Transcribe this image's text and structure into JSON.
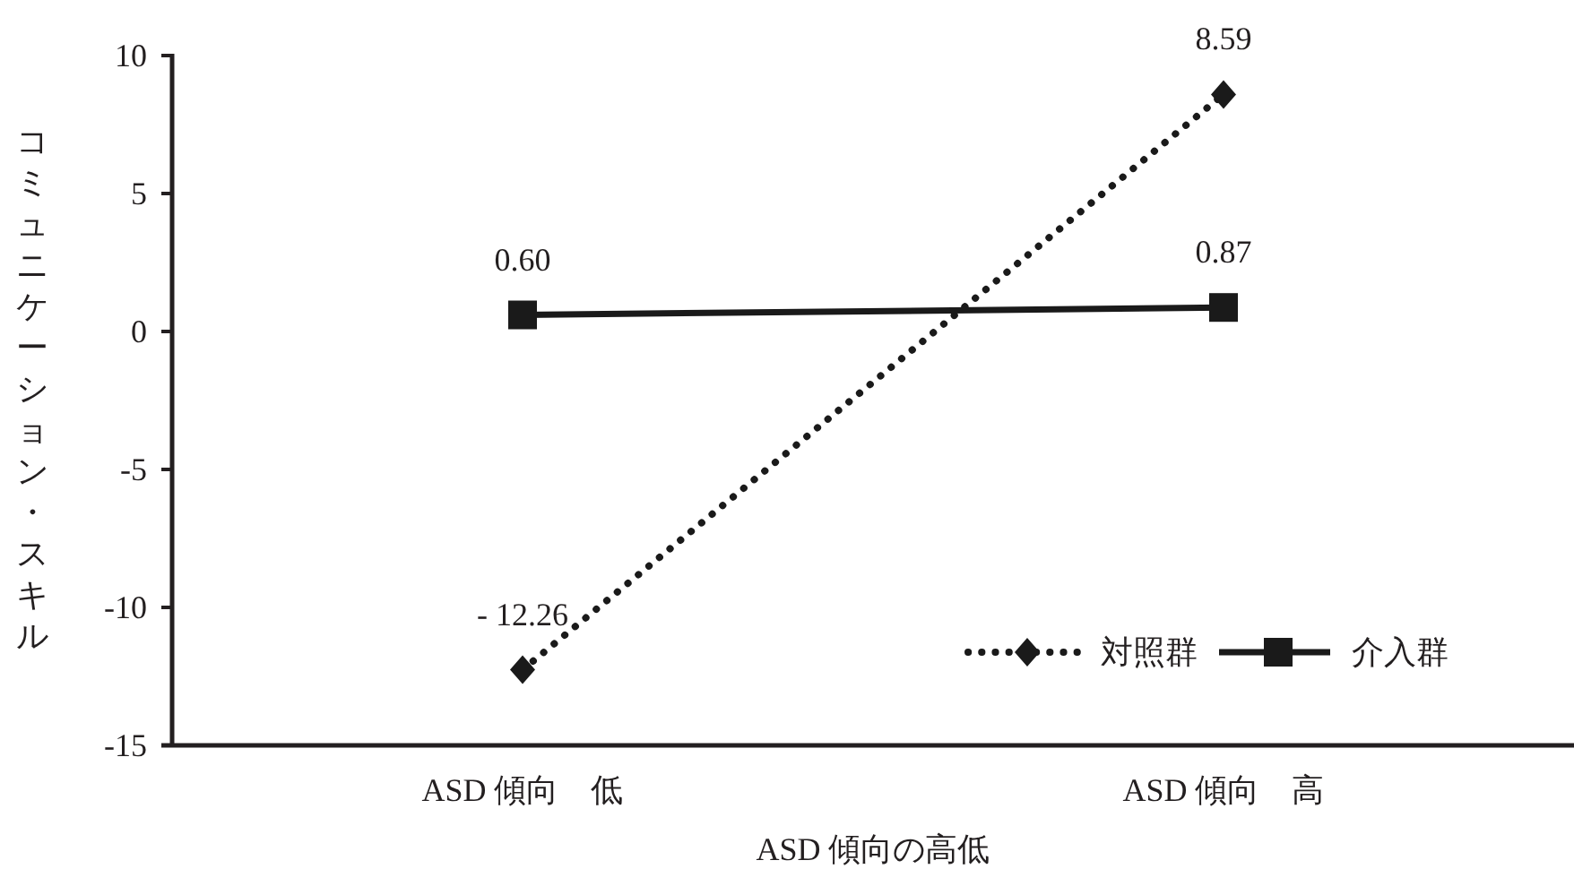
{
  "chart_data": {
    "type": "line",
    "xlabel": "ASD 傾向の高低",
    "ylabel": "コミュニケーション・スキル",
    "categories": [
      "ASD 傾向　低",
      "ASD 傾向　高"
    ],
    "series": [
      {
        "name": "対照群",
        "color": "#1a1a1a",
        "values": [
          -12.26,
          8.59
        ],
        "value_labels": [
          "- 12.26",
          "8.59"
        ],
        "marker": "diamond",
        "line_style": "dotted"
      },
      {
        "name": "介入群",
        "color": "#1a1a1a",
        "values": [
          0.6,
          0.87
        ],
        "value_labels": [
          "0.60",
          "0.87"
        ],
        "marker": "square",
        "line_style": "solid"
      }
    ],
    "ylim": [
      -15,
      10
    ],
    "yticks": [
      -15,
      -10,
      -5,
      0,
      5,
      10
    ],
    "grid": false,
    "legend": "bottom right"
  }
}
